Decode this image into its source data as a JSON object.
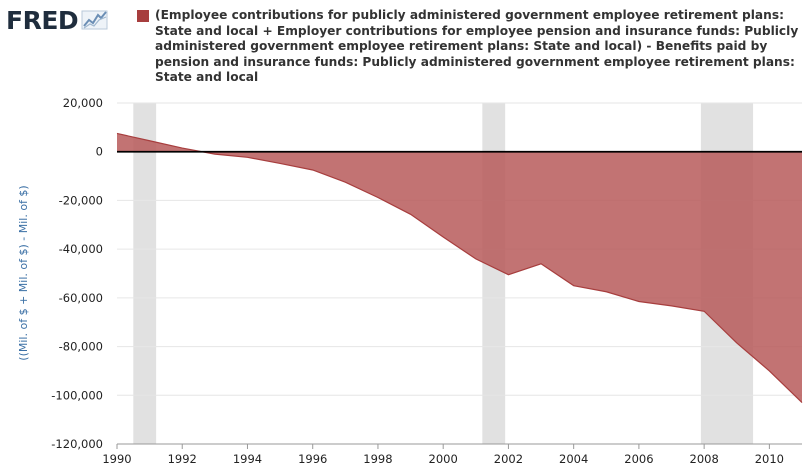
{
  "brand": {
    "logo_text": "FRED",
    "logo_icon": "line-chart-icon"
  },
  "chart_data": {
    "type": "area",
    "title": "",
    "legend": {
      "placement": "top",
      "entries": [
        "(Employee contributions for publicly administered government employee retirement plans: State and local + Employer contributions for employee pension and insurance funds: Publicly administered government employee retirement plans: State and local) - Benefits paid by pension and insurance funds: Publicly administered government employee retirement plans: State and local"
      ]
    },
    "xlabel": "",
    "ylabel": "((Mil. of $ + Mil. of $) - Mil. of $)",
    "xlim": [
      1990,
      2011
    ],
    "ylim": [
      -120000,
      20000
    ],
    "x_ticks": [
      1990,
      1992,
      1994,
      1996,
      1998,
      2000,
      2002,
      2004,
      2006,
      2008,
      2010
    ],
    "y_ticks": [
      20000,
      0,
      -20000,
      -40000,
      -60000,
      -80000,
      -100000,
      -120000
    ],
    "y_tick_labels": [
      "20,000",
      "0",
      "-20,000",
      "-40,000",
      "-60,000",
      "-80,000",
      "-100,000",
      "-120,000"
    ],
    "grid": true,
    "recessions": [
      [
        1990.5,
        1991.2
      ],
      [
        2001.2,
        2001.9
      ],
      [
        2007.9,
        2009.5
      ]
    ],
    "colors": {
      "fill": "#b75a5a",
      "fill_opacity": 0.85,
      "line": "#a73e3e",
      "recession": "#e1e1e1",
      "grid": "#e6e6e6",
      "zero_line": "#000000",
      "axis_label": "#3a6fa5"
    },
    "series": [
      {
        "name": "(Employee contributions for publicly administered government employee retirement plans: State and local + Employer contributions for employee pension and insurance funds: Publicly administered government employee retirement plans: State and local) - Benefits paid by pension and insurance funds: Publicly administered government employee retirement plans: State and local",
        "x": [
          1990,
          1991,
          1992,
          1993,
          1994,
          1995,
          1996,
          1997,
          1998,
          1999,
          2000,
          2001,
          2002,
          2003,
          2004,
          2005,
          2006,
          2007,
          2008,
          2009,
          2010,
          2011
        ],
        "values": [
          7500,
          4500,
          1500,
          -1000,
          -2300,
          -4800,
          -7500,
          -12500,
          -18800,
          -25700,
          -35000,
          -44000,
          -50500,
          -46000,
          -55000,
          -57500,
          -61500,
          -63300,
          -65500,
          -78500,
          -90000,
          -103000
        ]
      }
    ]
  }
}
